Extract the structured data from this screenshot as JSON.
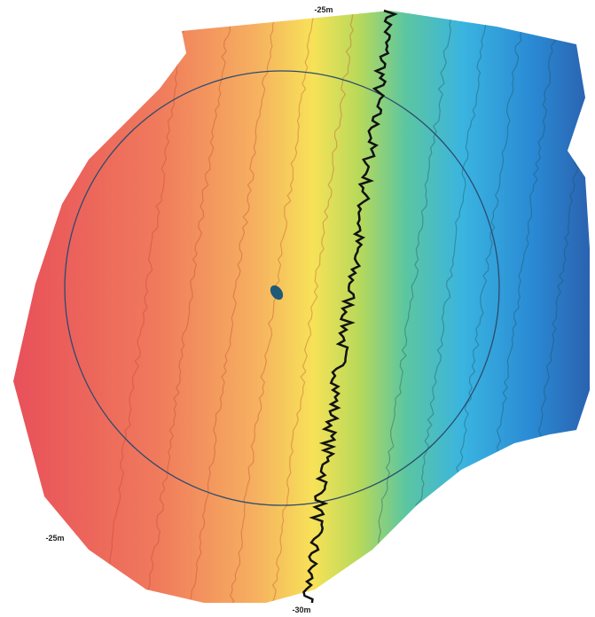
{
  "map": {
    "depth_labels": [
      "-25m",
      "-25m",
      "-30m"
    ]
  }
}
